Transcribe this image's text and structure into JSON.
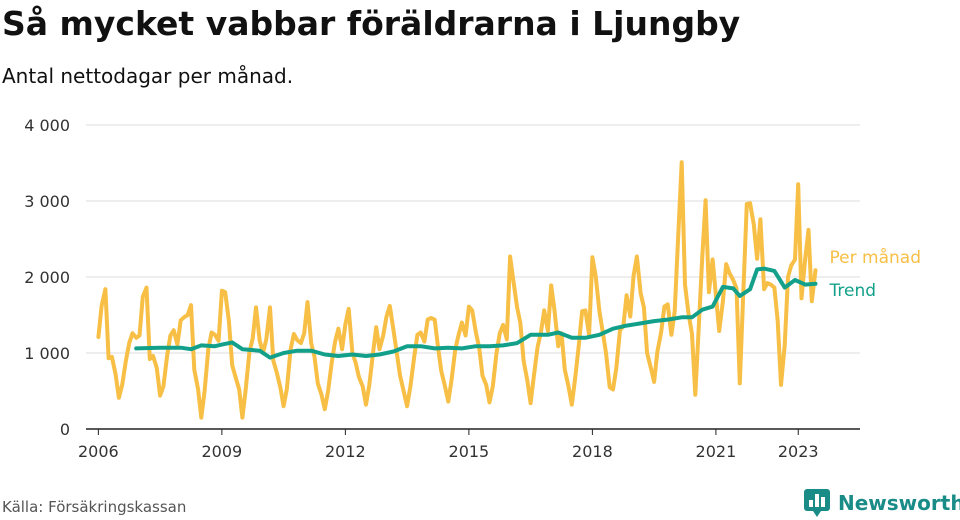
{
  "title": "Så mycket vabbar föräldrarna i Ljungby",
  "subtitle": "Antal nettodagar per månad.",
  "source": "Källa: Försäkringskassan",
  "brand": {
    "name": "Newsworthy",
    "icon": "newsworthy-logo-icon",
    "color": "#1a8c88"
  },
  "chart_data": {
    "type": "line",
    "title": "Så mycket vabbar föräldrarna i Ljungby",
    "subtitle": "Antal nettodagar per månad.",
    "xlabel": "",
    "ylabel": "",
    "xlim": [
      2005.7,
      2024.5
    ],
    "ylim": [
      0,
      4000
    ],
    "x_ticks": [
      2006,
      2009,
      2012,
      2015,
      2018,
      2021,
      2023
    ],
    "x_tick_labels": [
      "2006",
      "2009",
      "2012",
      "2015",
      "2018",
      "2021",
      "2023"
    ],
    "y_ticks": [
      0,
      1000,
      2000,
      3000,
      4000
    ],
    "y_tick_labels": [
      "0",
      "1 000",
      "2 000",
      "3 000",
      "4 000"
    ],
    "grid": true,
    "legend": "direct labels at line ends",
    "series": [
      {
        "name": "Per månad",
        "color": "#f7bf45",
        "points": [
          [
            2006.0,
            1210
          ],
          [
            2006.08,
            1620
          ],
          [
            2006.17,
            1840
          ],
          [
            2006.25,
            930
          ],
          [
            2006.33,
            950
          ],
          [
            2006.42,
            720
          ],
          [
            2006.5,
            410
          ],
          [
            2006.58,
            580
          ],
          [
            2006.67,
            900
          ],
          [
            2006.75,
            1130
          ],
          [
            2006.83,
            1260
          ],
          [
            2006.92,
            1200
          ],
          [
            2007.0,
            1230
          ],
          [
            2007.08,
            1740
          ],
          [
            2007.17,
            1860
          ],
          [
            2007.25,
            920
          ],
          [
            2007.33,
            960
          ],
          [
            2007.42,
            800
          ],
          [
            2007.5,
            440
          ],
          [
            2007.58,
            560
          ],
          [
            2007.67,
            960
          ],
          [
            2007.75,
            1230
          ],
          [
            2007.83,
            1300
          ],
          [
            2007.92,
            1110
          ],
          [
            2008.0,
            1430
          ],
          [
            2008.08,
            1470
          ],
          [
            2008.17,
            1500
          ],
          [
            2008.25,
            1630
          ],
          [
            2008.33,
            780
          ],
          [
            2008.42,
            530
          ],
          [
            2008.5,
            150
          ],
          [
            2008.58,
            500
          ],
          [
            2008.67,
            1050
          ],
          [
            2008.75,
            1270
          ],
          [
            2008.83,
            1240
          ],
          [
            2008.92,
            1160
          ],
          [
            2009.0,
            1820
          ],
          [
            2009.08,
            1800
          ],
          [
            2009.17,
            1420
          ],
          [
            2009.25,
            840
          ],
          [
            2009.33,
            690
          ],
          [
            2009.42,
            520
          ],
          [
            2009.5,
            150
          ],
          [
            2009.58,
            520
          ],
          [
            2009.67,
            1010
          ],
          [
            2009.75,
            1190
          ],
          [
            2009.83,
            1600
          ],
          [
            2009.92,
            1160
          ],
          [
            2010.0,
            1000
          ],
          [
            2010.08,
            1180
          ],
          [
            2010.17,
            1600
          ],
          [
            2010.25,
            900
          ],
          [
            2010.33,
            750
          ],
          [
            2010.42,
            550
          ],
          [
            2010.5,
            300
          ],
          [
            2010.58,
            530
          ],
          [
            2010.67,
            1050
          ],
          [
            2010.75,
            1250
          ],
          [
            2010.83,
            1170
          ],
          [
            2010.92,
            1130
          ],
          [
            2011.0,
            1260
          ],
          [
            2011.08,
            1670
          ],
          [
            2011.17,
            1130
          ],
          [
            2011.25,
            950
          ],
          [
            2011.33,
            600
          ],
          [
            2011.42,
            450
          ],
          [
            2011.5,
            260
          ],
          [
            2011.58,
            500
          ],
          [
            2011.67,
            880
          ],
          [
            2011.75,
            1150
          ],
          [
            2011.83,
            1320
          ],
          [
            2011.92,
            1050
          ],
          [
            2012.0,
            1380
          ],
          [
            2012.08,
            1580
          ],
          [
            2012.17,
            1000
          ],
          [
            2012.25,
            870
          ],
          [
            2012.33,
            680
          ],
          [
            2012.42,
            560
          ],
          [
            2012.5,
            320
          ],
          [
            2012.58,
            580
          ],
          [
            2012.67,
            1000
          ],
          [
            2012.75,
            1340
          ],
          [
            2012.83,
            1050
          ],
          [
            2012.92,
            1230
          ],
          [
            2013.0,
            1480
          ],
          [
            2013.08,
            1620
          ],
          [
            2013.17,
            1300
          ],
          [
            2013.25,
            1000
          ],
          [
            2013.33,
            700
          ],
          [
            2013.42,
            490
          ],
          [
            2013.5,
            300
          ],
          [
            2013.58,
            560
          ],
          [
            2013.67,
            940
          ],
          [
            2013.75,
            1240
          ],
          [
            2013.83,
            1270
          ],
          [
            2013.92,
            1150
          ],
          [
            2014.0,
            1440
          ],
          [
            2014.08,
            1460
          ],
          [
            2014.17,
            1440
          ],
          [
            2014.25,
            1080
          ],
          [
            2014.33,
            760
          ],
          [
            2014.42,
            560
          ],
          [
            2014.5,
            360
          ],
          [
            2014.58,
            650
          ],
          [
            2014.67,
            1050
          ],
          [
            2014.75,
            1240
          ],
          [
            2014.83,
            1400
          ],
          [
            2014.92,
            1230
          ],
          [
            2015.0,
            1610
          ],
          [
            2015.08,
            1560
          ],
          [
            2015.17,
            1270
          ],
          [
            2015.25,
            1070
          ],
          [
            2015.33,
            700
          ],
          [
            2015.42,
            580
          ],
          [
            2015.5,
            350
          ],
          [
            2015.58,
            560
          ],
          [
            2015.67,
            1000
          ],
          [
            2015.75,
            1260
          ],
          [
            2015.83,
            1370
          ],
          [
            2015.92,
            1180
          ],
          [
            2016.0,
            2270
          ],
          [
            2016.08,
            1960
          ],
          [
            2016.17,
            1600
          ],
          [
            2016.25,
            1400
          ],
          [
            2016.33,
            900
          ],
          [
            2016.42,
            640
          ],
          [
            2016.5,
            340
          ],
          [
            2016.58,
            700
          ],
          [
            2016.67,
            1080
          ],
          [
            2016.75,
            1270
          ],
          [
            2016.83,
            1560
          ],
          [
            2016.92,
            1290
          ],
          [
            2017.0,
            1890
          ],
          [
            2017.08,
            1560
          ],
          [
            2017.17,
            1090
          ],
          [
            2017.25,
            1260
          ],
          [
            2017.33,
            780
          ],
          [
            2017.42,
            560
          ],
          [
            2017.5,
            320
          ],
          [
            2017.58,
            660
          ],
          [
            2017.67,
            1100
          ],
          [
            2017.75,
            1550
          ],
          [
            2017.83,
            1560
          ],
          [
            2017.92,
            1240
          ],
          [
            2018.0,
            2260
          ],
          [
            2018.08,
            2010
          ],
          [
            2018.17,
            1550
          ],
          [
            2018.25,
            1280
          ],
          [
            2018.33,
            1000
          ],
          [
            2018.42,
            550
          ],
          [
            2018.5,
            520
          ],
          [
            2018.58,
            800
          ],
          [
            2018.67,
            1300
          ],
          [
            2018.75,
            1350
          ],
          [
            2018.83,
            1760
          ],
          [
            2018.92,
            1480
          ],
          [
            2019.0,
            2020
          ],
          [
            2019.08,
            2270
          ],
          [
            2019.17,
            1790
          ],
          [
            2019.25,
            1600
          ],
          [
            2019.33,
            1000
          ],
          [
            2019.42,
            800
          ],
          [
            2019.5,
            620
          ],
          [
            2019.58,
            1020
          ],
          [
            2019.67,
            1270
          ],
          [
            2019.75,
            1610
          ],
          [
            2019.83,
            1640
          ],
          [
            2019.92,
            1240
          ],
          [
            2020.0,
            1550
          ],
          [
            2020.08,
            2480
          ],
          [
            2020.17,
            3510
          ],
          [
            2020.25,
            1900
          ],
          [
            2020.33,
            1540
          ],
          [
            2020.42,
            1250
          ],
          [
            2020.5,
            450
          ],
          [
            2020.58,
            1300
          ],
          [
            2020.67,
            2270
          ],
          [
            2020.75,
            3010
          ],
          [
            2020.83,
            1800
          ],
          [
            2020.92,
            2230
          ],
          [
            2021.0,
            1760
          ],
          [
            2021.08,
            1290
          ],
          [
            2021.17,
            1680
          ],
          [
            2021.25,
            2170
          ],
          [
            2021.33,
            2050
          ],
          [
            2021.42,
            1960
          ],
          [
            2021.5,
            1850
          ],
          [
            2021.58,
            600
          ],
          [
            2021.67,
            1860
          ],
          [
            2021.75,
            2960
          ],
          [
            2021.83,
            2970
          ],
          [
            2021.92,
            2690
          ],
          [
            2022.0,
            2240
          ],
          [
            2022.08,
            2760
          ],
          [
            2022.17,
            1840
          ],
          [
            2022.25,
            1920
          ],
          [
            2022.33,
            1900
          ],
          [
            2022.42,
            1860
          ],
          [
            2022.5,
            1420
          ],
          [
            2022.58,
            580
          ],
          [
            2022.67,
            1100
          ],
          [
            2022.75,
            2000
          ],
          [
            2022.83,
            2150
          ],
          [
            2022.92,
            2230
          ],
          [
            2023.0,
            3220
          ],
          [
            2023.08,
            1720
          ],
          [
            2023.17,
            2240
          ],
          [
            2023.25,
            2620
          ],
          [
            2023.33,
            1680
          ],
          [
            2023.42,
            2090
          ]
        ]
      },
      {
        "name": "Trend",
        "color": "#13a08a",
        "points": [
          [
            2006.92,
            1060
          ],
          [
            2007.5,
            1070
          ],
          [
            2008.0,
            1070
          ],
          [
            2008.25,
            1050
          ],
          [
            2008.5,
            1100
          ],
          [
            2008.83,
            1090
          ],
          [
            2009.0,
            1110
          ],
          [
            2009.25,
            1140
          ],
          [
            2009.5,
            1050
          ],
          [
            2009.92,
            1030
          ],
          [
            2010.17,
            940
          ],
          [
            2010.5,
            1000
          ],
          [
            2010.83,
            1030
          ],
          [
            2011.17,
            1030
          ],
          [
            2011.5,
            980
          ],
          [
            2011.83,
            960
          ],
          [
            2012.17,
            980
          ],
          [
            2012.5,
            960
          ],
          [
            2012.83,
            980
          ],
          [
            2013.17,
            1020
          ],
          [
            2013.5,
            1090
          ],
          [
            2013.83,
            1090
          ],
          [
            2014.17,
            1060
          ],
          [
            2014.5,
            1070
          ],
          [
            2014.83,
            1060
          ],
          [
            2015.17,
            1090
          ],
          [
            2015.5,
            1090
          ],
          [
            2015.83,
            1100
          ],
          [
            2016.17,
            1130
          ],
          [
            2016.5,
            1240
          ],
          [
            2016.92,
            1240
          ],
          [
            2017.17,
            1270
          ],
          [
            2017.5,
            1200
          ],
          [
            2017.83,
            1200
          ],
          [
            2018.17,
            1240
          ],
          [
            2018.5,
            1320
          ],
          [
            2018.83,
            1360
          ],
          [
            2019.17,
            1390
          ],
          [
            2019.5,
            1420
          ],
          [
            2019.83,
            1440
          ],
          [
            2020.17,
            1470
          ],
          [
            2020.42,
            1470
          ],
          [
            2020.67,
            1570
          ],
          [
            2020.92,
            1610
          ],
          [
            2021.17,
            1870
          ],
          [
            2021.42,
            1850
          ],
          [
            2021.58,
            1750
          ],
          [
            2021.83,
            1840
          ],
          [
            2022.0,
            2100
          ],
          [
            2022.17,
            2110
          ],
          [
            2022.42,
            2080
          ],
          [
            2022.67,
            1860
          ],
          [
            2022.92,
            1960
          ],
          [
            2023.17,
            1900
          ],
          [
            2023.42,
            1910
          ]
        ]
      }
    ]
  }
}
